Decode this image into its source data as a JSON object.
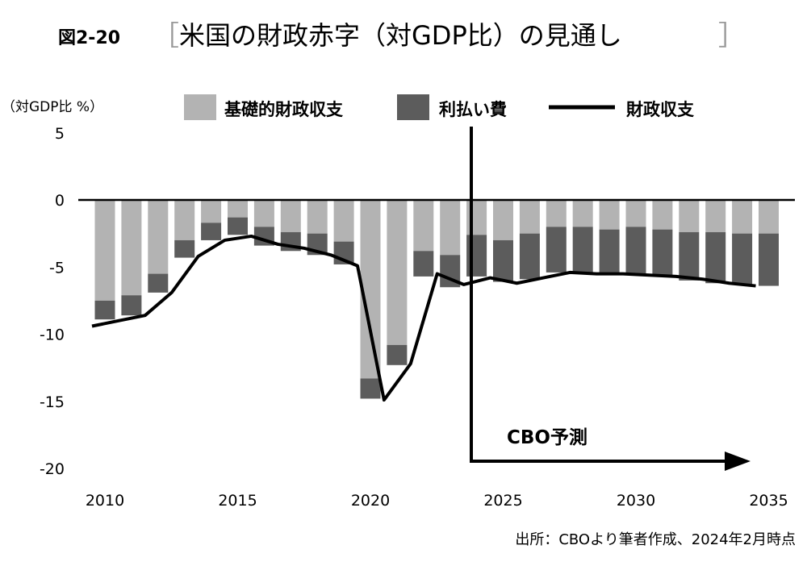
{
  "title": {
    "number": "図2-20",
    "bracket_left": "［",
    "main": "米国の財政赤字（対GDP比）の見通し",
    "bracket_right": "］"
  },
  "unit_label": "（対GDP比 %）",
  "legend": {
    "primary": "基礎的財政収支",
    "interest": "利払い費",
    "total": "財政収支"
  },
  "annotation": "CBO予測",
  "source": "出所：CBOより筆者作成、2024年2月時点",
  "colors": {
    "primary": "#b3b3b3",
    "interest": "#5c5c5c",
    "line": "#000000"
  },
  "chart_data": {
    "type": "bar",
    "stacked": true,
    "x": [
      2010,
      2011,
      2012,
      2013,
      2014,
      2015,
      2016,
      2017,
      2018,
      2019,
      2020,
      2021,
      2022,
      2023,
      2024,
      2025,
      2026,
      2027,
      2028,
      2029,
      2030,
      2031,
      2032,
      2033,
      2034,
      2035
    ],
    "x_ticks": [
      "2010",
      "2015",
      "2020",
      "2025",
      "2030",
      "2035"
    ],
    "y_ticks": [
      "5",
      "0",
      "-5",
      "-10",
      "-15",
      "-20"
    ],
    "ylim": [
      -20,
      5
    ],
    "forecast_start": 2023.8,
    "series": [
      {
        "name": "基礎的財政収支",
        "kind": "bar",
        "values": [
          -7.5,
          -7.1,
          -5.5,
          -3.0,
          -1.7,
          -1.3,
          -2.0,
          -2.4,
          -2.5,
          -3.1,
          -13.3,
          -10.8,
          -3.8,
          -4.1,
          -2.6,
          -3.0,
          -2.5,
          -2.0,
          -2.0,
          -2.2,
          -2.0,
          -2.2,
          -2.4,
          -2.4,
          -2.5,
          -2.5
        ]
      },
      {
        "name": "利払い費",
        "kind": "bar",
        "values": [
          -1.4,
          -1.5,
          -1.4,
          -1.3,
          -1.3,
          -1.3,
          -1.4,
          -1.4,
          -1.6,
          -1.7,
          -1.5,
          -1.5,
          -1.9,
          -2.4,
          -3.1,
          -3.1,
          -3.4,
          -3.4,
          -3.5,
          -3.3,
          -3.5,
          -3.5,
          -3.6,
          -3.8,
          -3.8,
          -3.9
        ]
      },
      {
        "name": "財政収支",
        "kind": "line",
        "values": [
          -9.4,
          -9.0,
          -8.6,
          -6.9,
          -4.2,
          -3.0,
          -2.7,
          -3.3,
          -3.6,
          -4.1,
          -4.9,
          -14.9,
          -12.2,
          -5.5,
          -6.3,
          -5.8,
          -6.2,
          -5.8,
          -5.4,
          -5.5,
          -5.5,
          -5.6,
          -5.7,
          -5.9,
          -6.2,
          -6.4
        ]
      }
    ]
  }
}
